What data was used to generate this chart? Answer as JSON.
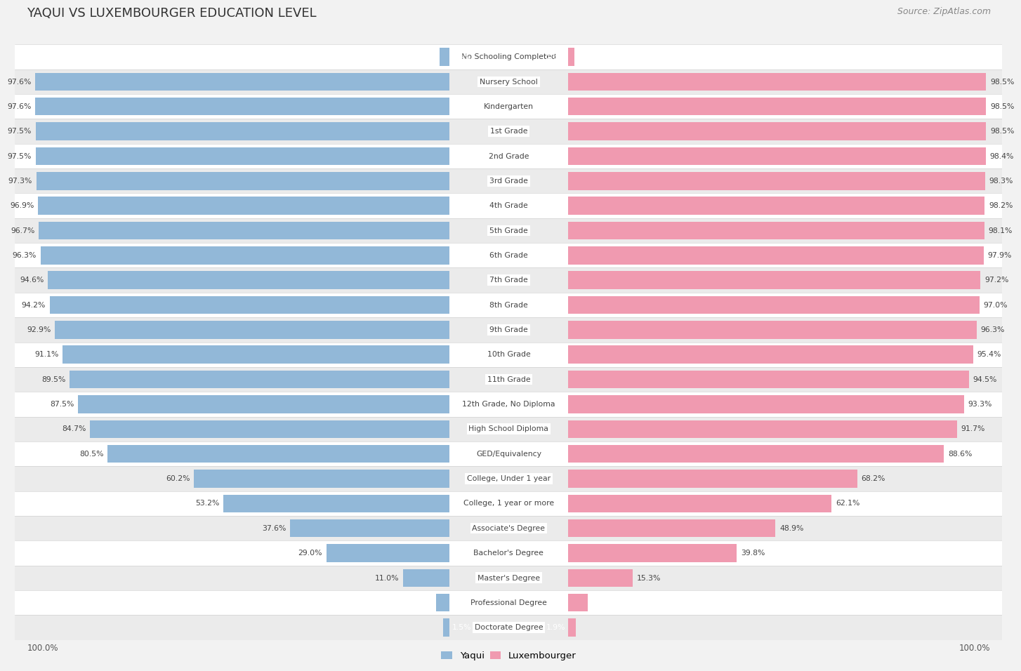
{
  "title": "YAQUI VS LUXEMBOURGER EDUCATION LEVEL",
  "source": "Source: ZipAtlas.com",
  "categories": [
    "No Schooling Completed",
    "Nursery School",
    "Kindergarten",
    "1st Grade",
    "2nd Grade",
    "3rd Grade",
    "4th Grade",
    "5th Grade",
    "6th Grade",
    "7th Grade",
    "8th Grade",
    "9th Grade",
    "10th Grade",
    "11th Grade",
    "12th Grade, No Diploma",
    "High School Diploma",
    "GED/Equivalency",
    "College, Under 1 year",
    "College, 1 year or more",
    "Associate's Degree",
    "Bachelor's Degree",
    "Master's Degree",
    "Professional Degree",
    "Doctorate Degree"
  ],
  "yaqui": [
    2.4,
    97.6,
    97.6,
    97.5,
    97.5,
    97.3,
    96.9,
    96.7,
    96.3,
    94.6,
    94.2,
    92.9,
    91.1,
    89.5,
    87.5,
    84.7,
    80.5,
    60.2,
    53.2,
    37.6,
    29.0,
    11.0,
    3.2,
    1.5
  ],
  "luxembourger": [
    1.6,
    98.5,
    98.5,
    98.5,
    98.4,
    98.3,
    98.2,
    98.1,
    97.9,
    97.2,
    97.0,
    96.3,
    95.4,
    94.5,
    93.3,
    91.7,
    88.6,
    68.2,
    62.1,
    48.9,
    39.8,
    15.3,
    4.6,
    1.9
  ],
  "yaqui_color": "#92b8d8",
  "luxembourger_color": "#f09ab0",
  "bg_color": "#f2f2f2",
  "row_color_odd": "#ffffff",
  "row_color_even": "#ebebeb",
  "label_color": "#444444",
  "value_color": "#444444",
  "title_color": "#333333",
  "figsize": [
    14.06,
    9.75
  ]
}
